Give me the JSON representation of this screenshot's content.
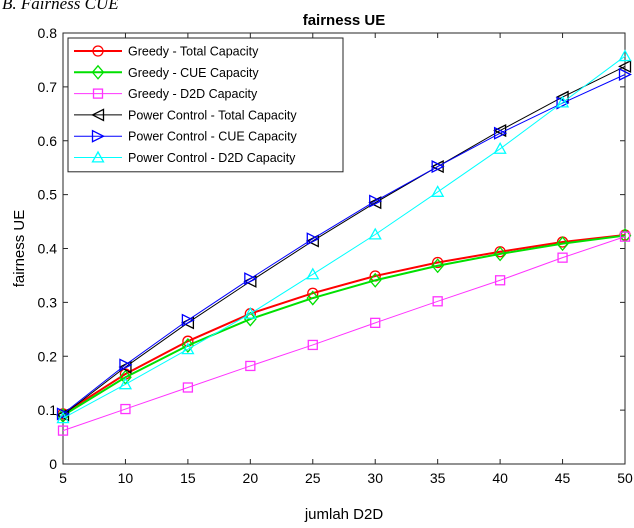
{
  "caption": "B. Fairness CUE",
  "chart_data": {
    "type": "line",
    "title": "fairness UE",
    "xlabel": "jumlah D2D",
    "ylabel": "fairness UE",
    "xlim": [
      5,
      50
    ],
    "ylim": [
      0,
      0.8
    ],
    "x": [
      5,
      10,
      15,
      20,
      25,
      30,
      35,
      40,
      45,
      50
    ],
    "xticks": [
      "5",
      "10",
      "15",
      "20",
      "25",
      "30",
      "35",
      "40",
      "45",
      "50"
    ],
    "yticks": [
      "0",
      "0.1",
      "0.2",
      "0.3",
      "0.4",
      "0.5",
      "0.6",
      "0.7",
      "0.8"
    ],
    "grid": false,
    "legend_position": "top-left",
    "series": [
      {
        "name": "Greedy - Total Capacity",
        "color": "#ff0000",
        "marker": "circle",
        "width": 2,
        "values": [
          0.093,
          0.167,
          0.228,
          0.279,
          0.317,
          0.349,
          0.374,
          0.394,
          0.412,
          0.425
        ]
      },
      {
        "name": "Greedy - CUE Capacity",
        "color": "#00e000",
        "marker": "diamond",
        "width": 2,
        "values": [
          0.09,
          0.161,
          0.22,
          0.269,
          0.308,
          0.341,
          0.368,
          0.39,
          0.409,
          0.424
        ]
      },
      {
        "name": "Greedy - D2D Capacity",
        "color": "#ff33ff",
        "marker": "square",
        "width": 1,
        "values": [
          0.062,
          0.102,
          0.142,
          0.182,
          0.221,
          0.262,
          0.302,
          0.341,
          0.383,
          0.422
        ]
      },
      {
        "name": "Power Control - Total Capacity",
        "color": "#000000",
        "marker": "triangle-left",
        "width": 1,
        "values": [
          0.091,
          0.18,
          0.262,
          0.339,
          0.414,
          0.485,
          0.552,
          0.619,
          0.681,
          0.738
        ]
      },
      {
        "name": "Power Control - CUE Capacity",
        "color": "#0000ff",
        "marker": "triangle-right",
        "width": 1,
        "values": [
          0.093,
          0.184,
          0.267,
          0.344,
          0.418,
          0.488,
          0.552,
          0.614,
          0.67,
          0.723
        ]
      },
      {
        "name": "Power Control - D2D Capacity",
        "color": "#00ffff",
        "marker": "triangle-up",
        "width": 1,
        "values": [
          0.085,
          0.148,
          0.213,
          0.279,
          0.352,
          0.426,
          0.505,
          0.585,
          0.671,
          0.757
        ]
      }
    ]
  }
}
